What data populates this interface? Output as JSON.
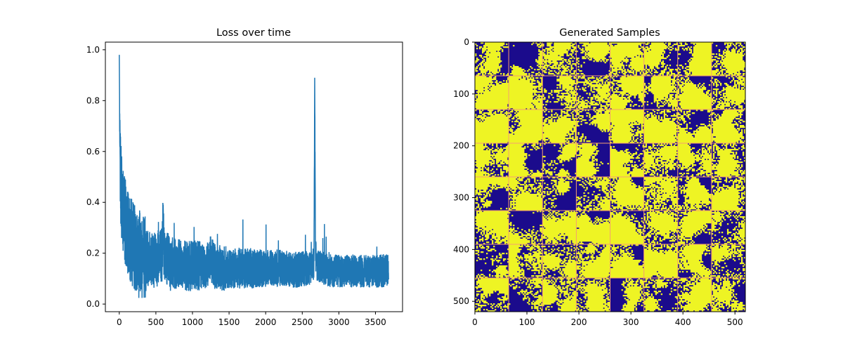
{
  "chart_data": [
    {
      "type": "line",
      "title": "Loss over time",
      "xlabel": "",
      "ylabel": "",
      "xlim": [
        -190,
        3870
      ],
      "ylim": [
        -0.03,
        1.03
      ],
      "xticks": [
        0,
        500,
        1000,
        1500,
        2000,
        2500,
        3000,
        3500
      ],
      "xtick_labels": [
        "0",
        "500",
        "1000",
        "1500",
        "2000",
        "2500",
        "3000",
        "3500"
      ],
      "yticks": [
        0.0,
        0.2,
        0.4,
        0.6,
        0.8,
        1.0
      ],
      "ytick_labels": [
        "0.0",
        "0.2",
        "0.4",
        "0.6",
        "0.8",
        "1.0"
      ],
      "grid": false,
      "color": "#1f77b4",
      "series": [
        {
          "x": [
            0,
            10,
            25,
            50,
            75,
            100,
            150,
            200,
            250,
            300,
            400,
            500,
            590,
            600,
            610,
            700,
            800,
            900,
            1000,
            1100,
            1200,
            1250,
            1300,
            1400,
            1500,
            1600,
            1700,
            1800,
            1900,
            2000,
            2100,
            2200,
            2300,
            2400,
            2500,
            2600,
            2660,
            2670,
            2680,
            2700,
            2800,
            2900,
            3000,
            3100,
            3200,
            3300,
            3400,
            3500,
            3600,
            3680
          ],
          "y": [
            0.98,
            0.55,
            0.45,
            0.36,
            0.33,
            0.29,
            0.25,
            0.22,
            0.2,
            0.19,
            0.18,
            0.17,
            0.2,
            0.39,
            0.2,
            0.16,
            0.16,
            0.15,
            0.15,
            0.15,
            0.15,
            0.18,
            0.15,
            0.14,
            0.14,
            0.14,
            0.14,
            0.14,
            0.14,
            0.14,
            0.14,
            0.14,
            0.14,
            0.13,
            0.14,
            0.14,
            0.16,
            0.89,
            0.2,
            0.15,
            0.14,
            0.13,
            0.13,
            0.13,
            0.13,
            0.13,
            0.13,
            0.13,
            0.13,
            0.14
          ],
          "noise_band": [
            0.35,
            0.22,
            0.2,
            0.18,
            0.16,
            0.15,
            0.14,
            0.13,
            0.13,
            0.13
          ]
        }
      ]
    },
    {
      "type": "heatmap",
      "title": "Generated Samples",
      "xlabel": "",
      "ylabel": "",
      "xlim": [
        0,
        520
      ],
      "ylim": [
        520,
        0
      ],
      "xticks": [
        0,
        100,
        200,
        300,
        400,
        500
      ],
      "xtick_labels": [
        "0",
        "100",
        "200",
        "300",
        "400",
        "500"
      ],
      "yticks": [
        0,
        100,
        200,
        300,
        400,
        500
      ],
      "ytick_labels": [
        "0",
        "100",
        "200",
        "300",
        "400",
        "500"
      ],
      "grid_rows": 8,
      "grid_cols": 8,
      "colors": {
        "low": "#1b0b8c",
        "high": "#eef424",
        "separator": "#f5a070"
      },
      "fill_fraction": 0.45
    }
  ]
}
